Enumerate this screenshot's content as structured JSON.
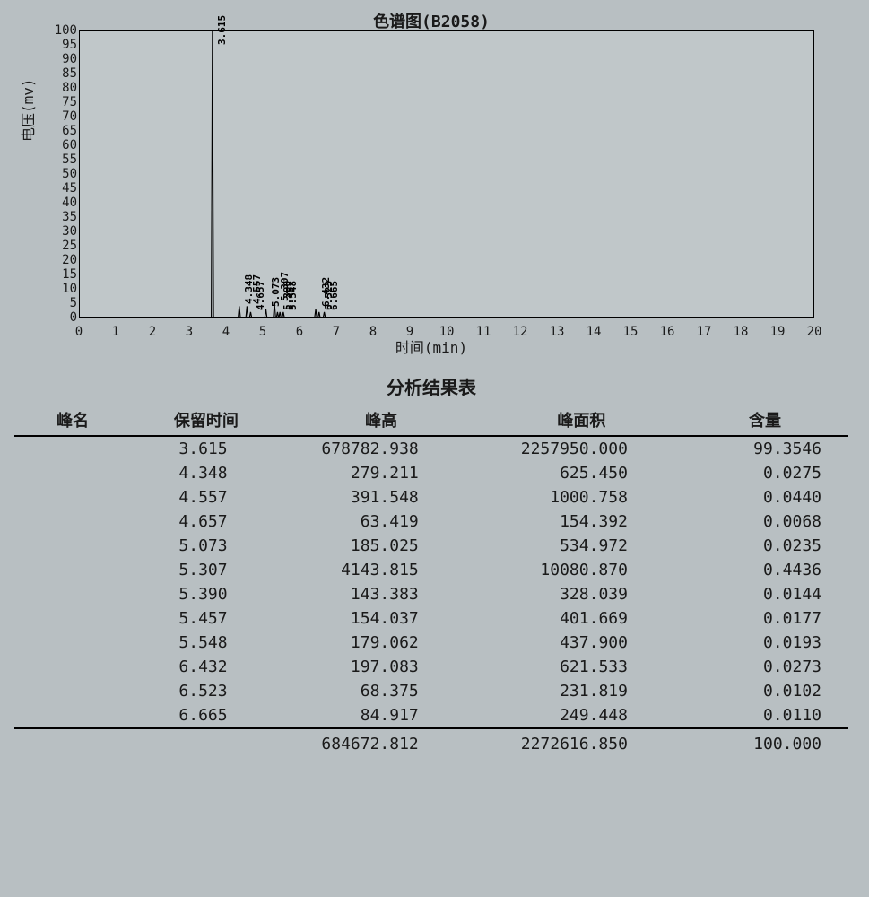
{
  "chart": {
    "type": "chromatogram",
    "title": "色谱图(B2058)",
    "xlabel": "时间(min)",
    "ylabel": "电压(mv)",
    "xlim": [
      0,
      20
    ],
    "ylim": [
      0,
      100
    ],
    "xtick_step": 1,
    "ytick_step": 5,
    "background_color": "#c0c7c9",
    "border_color": "#000000",
    "line_color": "#000000",
    "line_width": 1.2,
    "title_fontsize": 18,
    "label_fontsize": 16,
    "tick_fontsize": 14,
    "peak_label_fontsize": 11,
    "peaks": [
      {
        "rt": 3.615,
        "height_mv": 100,
        "label": "3.615"
      },
      {
        "rt": 4.348,
        "height_mv": 4,
        "label": "4.348"
      },
      {
        "rt": 4.557,
        "height_mv": 4,
        "label": "4.557"
      },
      {
        "rt": 4.657,
        "height_mv": 2,
        "label": "4.657"
      },
      {
        "rt": 5.073,
        "height_mv": 3,
        "label": "5.073"
      },
      {
        "rt": 5.307,
        "height_mv": 5,
        "label": "5.307"
      },
      {
        "rt": 5.39,
        "height_mv": 2,
        "label": "5.390"
      },
      {
        "rt": 5.457,
        "height_mv": 2,
        "label": "5.457"
      },
      {
        "rt": 5.548,
        "height_mv": 2,
        "label": "5.548"
      },
      {
        "rt": 6.432,
        "height_mv": 3,
        "label": "6.432"
      },
      {
        "rt": 6.523,
        "height_mv": 2,
        "label": "6.523"
      },
      {
        "rt": 6.665,
        "height_mv": 2,
        "label": "6.665"
      }
    ]
  },
  "table": {
    "title": "分析结果表",
    "columns": [
      "峰名",
      "保留时间",
      "峰高",
      "峰面积",
      "含量"
    ],
    "column_align": [
      "left",
      "right",
      "right",
      "right",
      "right"
    ],
    "header_fontsize": 20,
    "cell_fontsize": 18,
    "border_color": "#000000",
    "rows": [
      [
        "",
        "3.615",
        "678782.938",
        "2257950.000",
        "99.3546"
      ],
      [
        "",
        "4.348",
        "279.211",
        "625.450",
        "0.0275"
      ],
      [
        "",
        "4.557",
        "391.548",
        "1000.758",
        "0.0440"
      ],
      [
        "",
        "4.657",
        "63.419",
        "154.392",
        "0.0068"
      ],
      [
        "",
        "5.073",
        "185.025",
        "534.972",
        "0.0235"
      ],
      [
        "",
        "5.307",
        "4143.815",
        "10080.870",
        "0.4436"
      ],
      [
        "",
        "5.390",
        "143.383",
        "328.039",
        "0.0144"
      ],
      [
        "",
        "5.457",
        "154.037",
        "401.669",
        "0.0177"
      ],
      [
        "",
        "5.548",
        "179.062",
        "437.900",
        "0.0193"
      ],
      [
        "",
        "6.432",
        "197.083",
        "621.533",
        "0.0273"
      ],
      [
        "",
        "6.523",
        "68.375",
        "231.819",
        "0.0102"
      ],
      [
        "",
        "6.665",
        "84.917",
        "249.448",
        "0.0110"
      ]
    ],
    "total_row": [
      "",
      "",
      "684672.812",
      "2272616.850",
      "100.000"
    ]
  },
  "page_background": "#b8bfc2"
}
